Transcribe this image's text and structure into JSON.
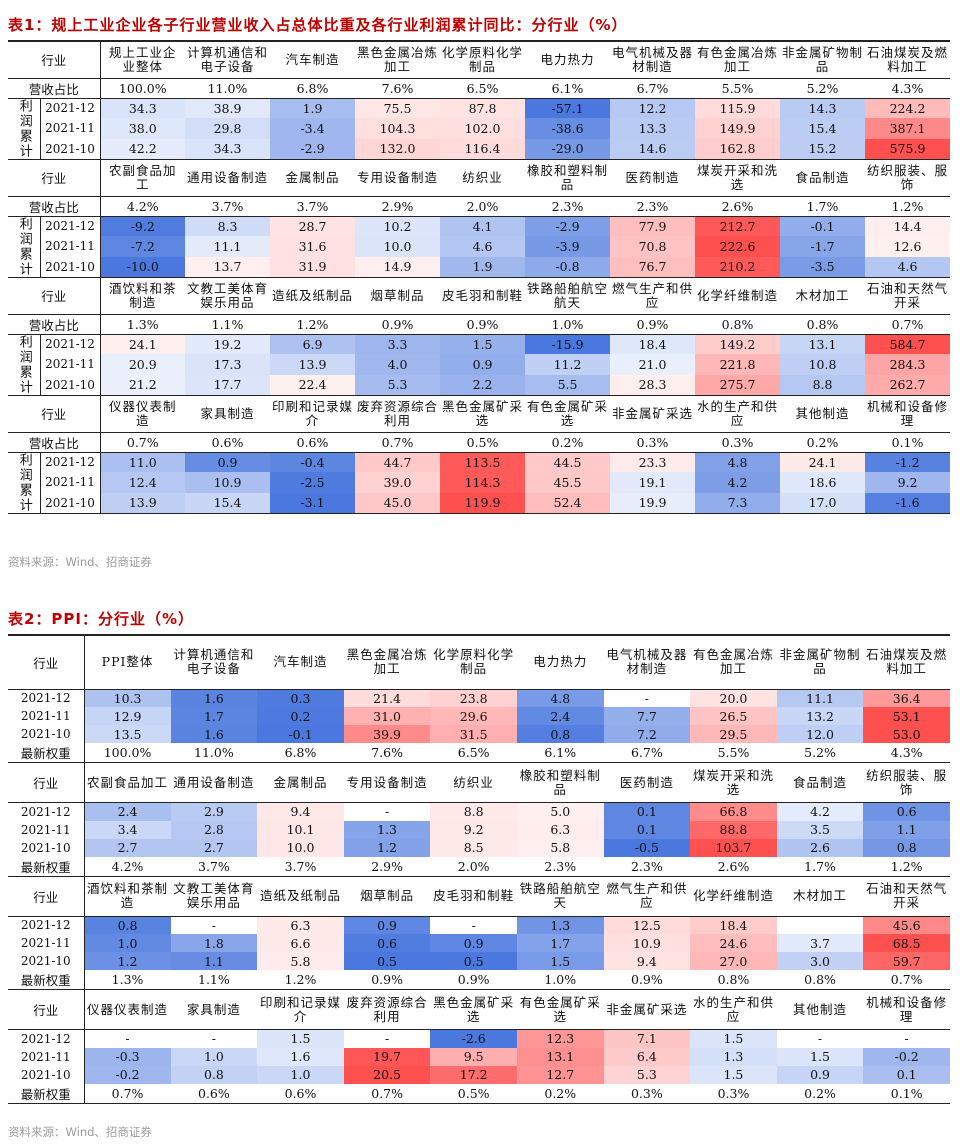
{
  "table1": {
    "title": "表1：规上工业企业各子行业营业收入占总体比重及各行业利润累计同比：分行业（%）",
    "industry_label": "行业",
    "share_label": "营收占比",
    "profit_label": "利润累计",
    "blocks": [
      {
        "headers": [
          "规上工业企业整体",
          "计算机通信和电子设备",
          "汽车制造",
          "黑色金属冶炼加工",
          "化学原料化学制品",
          "电力热力",
          "电气机械及器材制造",
          "有色金属冶炼加工",
          "非金属矿物制品",
          "石油煤炭及燃料加工"
        ],
        "shares": [
          "100.0%",
          "11.0%",
          "6.8%",
          "7.6%",
          "6.5%",
          "6.1%",
          "6.7%",
          "5.5%",
          "5.2%",
          "4.3%"
        ],
        "rows": [
          {
            "date": "2021-12",
            "values": [
              "34.3",
              "38.9",
              "1.9",
              "75.5",
              "87.8",
              "-57.1",
              "12.2",
              "115.9",
              "14.3",
              "224.2"
            ]
          },
          {
            "date": "2021-11",
            "values": [
              "38.0",
              "29.8",
              "-3.4",
              "104.3",
              "102.0",
              "-38.6",
              "13.3",
              "149.9",
              "15.4",
              "387.1"
            ]
          },
          {
            "date": "2021-10",
            "values": [
              "42.2",
              "34.3",
              "-2.9",
              "132.0",
              "116.4",
              "-29.0",
              "14.6",
              "162.8",
              "15.2",
              "575.9"
            ]
          }
        ]
      },
      {
        "headers": [
          "农副食品加工",
          "通用设备制造",
          "金属制品",
          "专用设备制造",
          "纺织业",
          "橡胶和塑料制品",
          "医药制造",
          "煤炭开采和洗选",
          "食品制造",
          "纺织服装、服饰"
        ],
        "shares": [
          "4.2%",
          "3.7%",
          "3.7%",
          "2.9%",
          "2.0%",
          "2.3%",
          "2.3%",
          "2.6%",
          "1.7%",
          "1.2%"
        ],
        "rows": [
          {
            "date": "2021-12",
            "values": [
              "-9.2",
              "8.3",
              "28.7",
              "10.2",
              "4.1",
              "-2.9",
              "77.9",
              "212.7",
              "-0.1",
              "14.4"
            ]
          },
          {
            "date": "2021-11",
            "values": [
              "-7.2",
              "11.1",
              "31.6",
              "10.0",
              "4.6",
              "-3.9",
              "70.8",
              "222.6",
              "-1.7",
              "12.6"
            ]
          },
          {
            "date": "2021-10",
            "values": [
              "-10.0",
              "13.7",
              "31.9",
              "14.9",
              "1.9",
              "-0.8",
              "76.7",
              "210.2",
              "-3.5",
              "4.6"
            ]
          }
        ]
      },
      {
        "headers": [
          "酒饮料和茶制造",
          "文教工美体育娱乐用品",
          "造纸及纸制品",
          "烟草制品",
          "皮毛羽和制鞋",
          "铁路船舶航空航天",
          "燃气生产和供应",
          "化学纤维制造",
          "木材加工",
          "石油和天然气开采"
        ],
        "shares": [
          "1.3%",
          "1.1%",
          "1.2%",
          "0.9%",
          "0.9%",
          "1.0%",
          "0.9%",
          "0.8%",
          "0.8%",
          "0.7%"
        ],
        "rows": [
          {
            "date": "2021-12",
            "values": [
              "24.1",
              "19.2",
              "6.9",
              "3.3",
              "1.5",
              "-15.9",
              "18.4",
              "149.2",
              "13.1",
              "584.7"
            ]
          },
          {
            "date": "2021-11",
            "values": [
              "20.9",
              "17.3",
              "13.9",
              "4.0",
              "0.9",
              "11.2",
              "21.0",
              "221.8",
              "10.8",
              "284.3"
            ]
          },
          {
            "date": "2021-10",
            "values": [
              "21.2",
              "17.7",
              "22.4",
              "5.3",
              "2.2",
              "5.5",
              "28.3",
              "275.7",
              "8.8",
              "262.7"
            ]
          }
        ]
      },
      {
        "headers": [
          "仪器仪表制造",
          "家具制造",
          "印刷和记录媒介",
          "废弃资源综合利用",
          "黑色金属矿采选",
          "有色金属矿采选",
          "非金属矿采选",
          "水的生产和供应",
          "其他制造",
          "机械和设备修理"
        ],
        "shares": [
          "0.7%",
          "0.6%",
          "0.6%",
          "0.7%",
          "0.5%",
          "0.2%",
          "0.3%",
          "0.3%",
          "0.2%",
          "0.1%"
        ],
        "rows": [
          {
            "date": "2021-12",
            "values": [
              "11.0",
              "0.9",
              "-0.4",
              "44.7",
              "113.5",
              "44.5",
              "23.3",
              "4.8",
              "24.1",
              "-1.2"
            ]
          },
          {
            "date": "2021-11",
            "values": [
              "12.4",
              "10.9",
              "-2.5",
              "39.0",
              "114.3",
              "45.5",
              "19.1",
              "4.2",
              "18.6",
              "9.2"
            ]
          },
          {
            "date": "2021-10",
            "values": [
              "13.9",
              "15.4",
              "-3.1",
              "45.0",
              "119.9",
              "52.4",
              "19.9",
              "7.3",
              "17.0",
              "-1.6"
            ]
          }
        ]
      }
    ],
    "source": "资料来源：Wind、招商证券"
  },
  "table2": {
    "title": "表2：PPI：分行业（%）",
    "industry_label": "行业",
    "weight_label": "最新权重",
    "blocks": [
      {
        "headers": [
          "PPI整体",
          "计算机通信和电子设备",
          "汽车制造",
          "黑色金属冶炼加工",
          "化学原料化学制品",
          "电力热力",
          "电气机械及器材制造",
          "有色金属冶炼加工",
          "非金属矿物制品",
          "石油煤炭及燃料加工"
        ],
        "rows": [
          {
            "date": "2021-12",
            "values": [
              "10.3",
              "1.6",
              "0.3",
              "21.4",
              "23.8",
              "4.8",
              "-",
              "20.0",
              "11.1",
              "36.4"
            ]
          },
          {
            "date": "2021-11",
            "values": [
              "12.9",
              "1.7",
              "0.2",
              "31.0",
              "29.6",
              "2.4",
              "7.7",
              "26.5",
              "13.2",
              "53.1"
            ]
          },
          {
            "date": "2021-10",
            "values": [
              "13.5",
              "1.6",
              "-0.1",
              "39.9",
              "31.5",
              "0.8",
              "7.2",
              "29.5",
              "12.0",
              "53.0"
            ]
          }
        ],
        "weights": [
          "100.0%",
          "11.0%",
          "6.8%",
          "7.6%",
          "6.5%",
          "6.1%",
          "6.7%",
          "5.5%",
          "5.2%",
          "4.3%"
        ]
      },
      {
        "headers": [
          "农副食品加工",
          "通用设备制造",
          "金属制品",
          "专用设备制造",
          "纺织业",
          "橡胶和塑料制品",
          "医药制造",
          "煤炭开采和洗选",
          "食品制造",
          "纺织服装、服饰"
        ],
        "rows": [
          {
            "date": "2021-12",
            "values": [
              "2.4",
              "2.9",
              "9.4",
              "-",
              "8.8",
              "5.0",
              "0.1",
              "66.8",
              "4.2",
              "0.6"
            ]
          },
          {
            "date": "2021-11",
            "values": [
              "3.4",
              "2.8",
              "10.1",
              "1.3",
              "9.2",
              "6.3",
              "0.1",
              "88.8",
              "3.5",
              "1.1"
            ]
          },
          {
            "date": "2021-10",
            "values": [
              "2.7",
              "2.7",
              "10.0",
              "1.2",
              "8.5",
              "5.8",
              "-0.5",
              "103.7",
              "2.6",
              "0.8"
            ]
          }
        ],
        "weights": [
          "4.2%",
          "3.7%",
          "3.7%",
          "2.9%",
          "2.0%",
          "2.3%",
          "2.3%",
          "2.6%",
          "1.7%",
          "1.2%"
        ]
      },
      {
        "headers": [
          "酒饮料和茶制造",
          "文教工美体育娱乐用品",
          "造纸及纸制品",
          "烟草制品",
          "皮毛羽和制鞋",
          "铁路船舶航空天",
          "燃气生产和供应",
          "化学纤维制造",
          "木材加工",
          "石油和天然气开采"
        ],
        "rows": [
          {
            "date": "2021-12",
            "values": [
              "0.8",
              "-",
              "6.3",
              "0.9",
              "-",
              "1.3",
              "12.5",
              "18.4",
              "",
              "45.6"
            ]
          },
          {
            "date": "2021-11",
            "values": [
              "1.0",
              "1.8",
              "6.6",
              "0.6",
              "0.9",
              "1.7",
              "10.9",
              "24.6",
              "3.7",
              "68.5"
            ]
          },
          {
            "date": "2021-10",
            "values": [
              "1.2",
              "1.1",
              "5.8",
              "0.5",
              "0.5",
              "1.5",
              "9.4",
              "27.0",
              "3.0",
              "59.7"
            ]
          }
        ],
        "weights": [
          "1.3%",
          "1.1%",
          "1.2%",
          "0.9%",
          "0.9%",
          "1.0%",
          "0.9%",
          "0.8%",
          "0.8%",
          "0.7%"
        ]
      },
      {
        "headers": [
          "仪器仪表制造",
          "家具制造",
          "印刷和记录媒介",
          "废弃资源综合利用",
          "黑色金属矿采选",
          "有色金属矿采选",
          "非金属矿采选",
          "水的生产和供应",
          "其他制造",
          "机械和设备修理"
        ],
        "rows": [
          {
            "date": "2021-12",
            "values": [
              "-",
              "-",
              "1.5",
              "-",
              "-2.6",
              "12.3",
              "7.1",
              "1.5",
              "-",
              "-"
            ]
          },
          {
            "date": "2021-11",
            "values": [
              "-0.3",
              "1.0",
              "1.6",
              "19.7",
              "9.5",
              "13.1",
              "6.4",
              "1.3",
              "1.5",
              "-0.2"
            ]
          },
          {
            "date": "2021-10",
            "values": [
              "-0.2",
              "0.8",
              "1.0",
              "20.5",
              "17.2",
              "12.7",
              "5.3",
              "1.5",
              "0.9",
              "0.1"
            ]
          }
        ],
        "weights": [
          "0.7%",
          "0.6%",
          "0.6%",
          "0.7%",
          "0.5%",
          "0.2%",
          "0.3%",
          "0.3%",
          "0.2%",
          "0.1%"
        ]
      }
    ],
    "source": "资料来源：Wind、招商证券"
  }
}
